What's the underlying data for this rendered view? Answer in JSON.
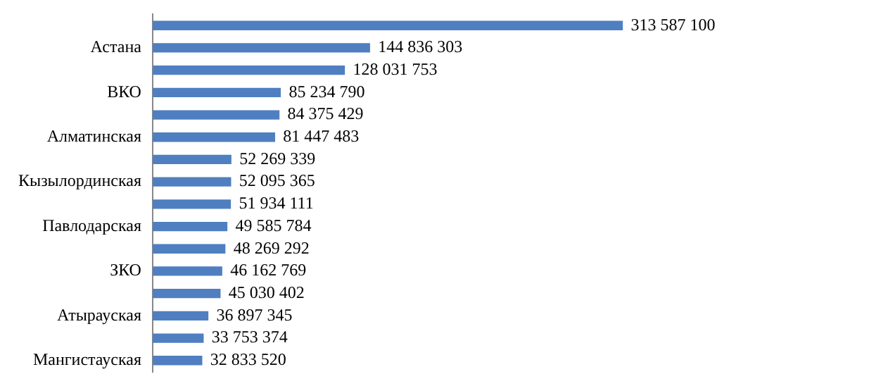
{
  "chart_data": {
    "type": "bar",
    "orientation": "horizontal",
    "categories": [
      null,
      "Астана",
      null,
      "ВКО",
      null,
      "Алматинская",
      null,
      "Кызылординская",
      null,
      "Павлодарская",
      null,
      "ЗКО",
      null,
      "Атырауская",
      null,
      "Мангистауская"
    ],
    "values": [
      313587100,
      144836303,
      128031753,
      85234790,
      84375429,
      81447483,
      52269339,
      52095365,
      51934111,
      49585784,
      48269292,
      46162769,
      45030402,
      36897345,
      33753374,
      32833520
    ],
    "color": "#4f7fc0",
    "data_labels": true
  }
}
